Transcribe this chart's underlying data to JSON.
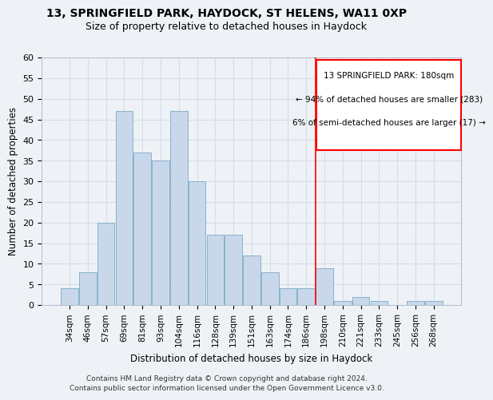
{
  "title_line1": "13, SPRINGFIELD PARK, HAYDOCK, ST HELENS, WA11 0XP",
  "title_line2": "Size of property relative to detached houses in Haydock",
  "xlabel": "Distribution of detached houses by size in Haydock",
  "ylabel": "Number of detached properties",
  "footnote1": "Contains HM Land Registry data © Crown copyright and database right 2024.",
  "footnote2": "Contains public sector information licensed under the Open Government Licence v3.0.",
  "bar_labels": [
    "34sqm",
    "46sqm",
    "57sqm",
    "69sqm",
    "81sqm",
    "93sqm",
    "104sqm",
    "116sqm",
    "128sqm",
    "139sqm",
    "151sqm",
    "163sqm",
    "174sqm",
    "186sqm",
    "198sqm",
    "210sqm",
    "221sqm",
    "233sqm",
    "245sqm",
    "256sqm",
    "268sqm"
  ],
  "bar_values": [
    4,
    8,
    20,
    47,
    37,
    35,
    47,
    30,
    17,
    17,
    12,
    8,
    4,
    4,
    9,
    1,
    2,
    1,
    0,
    1,
    1
  ],
  "bar_color": "#c8d8ea",
  "bar_edgecolor": "#7aaac8",
  "vline_x_bar_index": 13.5,
  "vline_color": "red",
  "ylim": [
    0,
    60
  ],
  "yticks": [
    0,
    5,
    10,
    15,
    20,
    25,
    30,
    35,
    40,
    45,
    50,
    55,
    60
  ],
  "annotation_text_line1": "13 SPRINGFIELD PARK: 180sqm",
  "annotation_text_line2": "← 94% of detached houses are smaller (283)",
  "annotation_text_line3": "6% of semi-detached houses are larger (17) →",
  "grid_color": "#d4dde6",
  "background_color": "#eef2f7",
  "plot_bg_color": "#eef2f7"
}
